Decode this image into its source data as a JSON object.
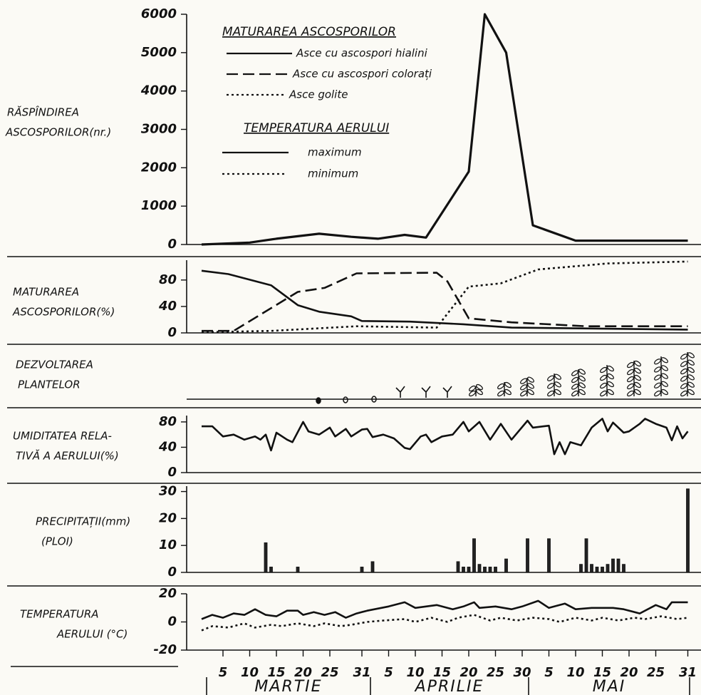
{
  "chart_data": [
    {
      "type": "line",
      "ylabel": [
        "RĂSPÎNDIREA",
        "ASCOSPORILOR(nr.)"
      ],
      "xlim": [
        0,
        94
      ],
      "ylim": [
        0,
        6000
      ],
      "yticks": [
        0,
        1000,
        2000,
        3000,
        4000,
        5000,
        6000
      ],
      "series": [
        {
          "color": "#111111",
          "dash": "solid",
          "x": [
            1,
            10,
            15,
            23,
            29,
            34,
            39,
            43,
            51,
            54,
            58,
            63,
            71,
            92
          ],
          "values": [
            0,
            50,
            150,
            280,
            200,
            150,
            250,
            180,
            1900,
            6000,
            5000,
            500,
            100,
            100
          ]
        }
      ]
    },
    {
      "type": "line",
      "ylabel": [
        "MATURAREA",
        "ASCOSPORILOR(%)"
      ],
      "legend_title": "MATURAREA ASCOSPORILOR",
      "xlim": [
        0,
        94
      ],
      "ylim": [
        0,
        110
      ],
      "yticks": [
        0,
        40,
        80
      ],
      "series": [
        {
          "name": "Asce cu ascospori hialini",
          "color": "#111111",
          "dash": "solid",
          "x": [
            1,
            6,
            14,
            19,
            23,
            29,
            31,
            40,
            50,
            59,
            92
          ],
          "values": [
            94,
            89,
            72,
            42,
            32,
            25,
            18,
            17,
            13,
            8,
            5
          ]
        },
        {
          "name": "Asce cu ascospori colorați",
          "color": "#111111",
          "dash": "dashed",
          "x": [
            1,
            7,
            19,
            24,
            30,
            45,
            47,
            51,
            59,
            73,
            92
          ],
          "values": [
            3,
            3,
            62,
            68,
            90,
            91,
            78,
            22,
            16,
            10,
            10
          ]
        },
        {
          "name": "Asce golite",
          "color": "#111111",
          "dash": "dotted",
          "x": [
            1,
            14,
            30,
            45,
            47,
            51,
            57,
            64,
            77,
            92
          ],
          "values": [
            1,
            3,
            10,
            8,
            29,
            70,
            75,
            96,
            105,
            108
          ]
        }
      ]
    },
    {
      "type": "plants",
      "ylabel": [
        "DEZVOLTAREA",
        "PLANTELOR"
      ]
    },
    {
      "type": "line",
      "ylabel": [
        "UMIDITATEA RELA-",
        "TIVĂ A AERULUI(%)"
      ],
      "xlim": [
        0,
        94
      ],
      "ylim": [
        0,
        90
      ],
      "yticks": [
        0,
        40,
        80
      ],
      "series": [
        {
          "color": "#111111",
          "dash": "solid",
          "x": [
            1,
            3,
            5,
            7,
            9,
            11,
            12,
            13,
            14,
            15,
            17,
            18,
            20,
            21,
            23,
            25,
            26,
            28,
            29,
            31,
            32,
            33,
            35,
            37,
            39,
            40,
            42,
            43,
            44,
            46,
            48,
            50,
            51,
            53,
            55,
            57,
            59,
            62,
            63,
            65,
            66,
            67,
            68,
            69,
            70,
            72,
            74,
            76,
            77,
            78,
            80,
            81,
            83,
            84,
            86,
            88,
            89,
            90,
            91,
            92
          ],
          "values": [
            73,
            73,
            57,
            60,
            52,
            57,
            52,
            60,
            35,
            63,
            52,
            48,
            80,
            65,
            60,
            71,
            57,
            69,
            57,
            68,
            69,
            56,
            60,
            54,
            39,
            37,
            57,
            60,
            48,
            57,
            60,
            80,
            65,
            80,
            52,
            77,
            52,
            82,
            71,
            73,
            74,
            29,
            48,
            29,
            48,
            43,
            71,
            85,
            65,
            79,
            63,
            65,
            77,
            85,
            77,
            71,
            51,
            73,
            54,
            65
          ]
        }
      ]
    },
    {
      "type": "bar",
      "ylabel": [
        "PRECIPITAȚII(mm)",
        "(PLOI)"
      ],
      "xlim": [
        0,
        94
      ],
      "ylim": [
        0,
        32
      ],
      "yticks": [
        0,
        10,
        20,
        30
      ],
      "color": "#222222",
      "x": [
        13,
        14,
        19,
        31,
        33,
        49,
        50,
        51,
        52,
        53,
        54,
        55,
        56,
        58,
        62,
        66,
        72,
        73,
        74,
        75,
        76,
        77,
        78,
        79,
        80,
        92
      ],
      "values": [
        11,
        2,
        2,
        2,
        4,
        4,
        2,
        2,
        12.5,
        3,
        2,
        2,
        2,
        5,
        12.5,
        12.5,
        3,
        12.5,
        3,
        2,
        2,
        3,
        5,
        5,
        3,
        31
      ]
    },
    {
      "type": "line",
      "ylabel": [
        "TEMPERATURA",
        "AERULUI (°C)"
      ],
      "legend_title": "TEMPERATURA AERULUI",
      "xlim": [
        0,
        94
      ],
      "ylim": [
        -20,
        20
      ],
      "yticks": [
        -20,
        0,
        20
      ],
      "xticks": [
        {
          "value": 5,
          "label": "5"
        },
        {
          "value": 10,
          "label": "10"
        },
        {
          "value": 15,
          "label": "15"
        },
        {
          "value": 20,
          "label": "20"
        },
        {
          "value": 25,
          "label": "25"
        },
        {
          "value": 31,
          "label": "31"
        },
        {
          "value": 36,
          "label": "5"
        },
        {
          "value": 41,
          "label": "10"
        },
        {
          "value": 46,
          "label": "15"
        },
        {
          "value": 51,
          "label": "20"
        },
        {
          "value": 56,
          "label": "25"
        },
        {
          "value": 61,
          "label": "30"
        },
        {
          "value": 66,
          "label": "5"
        },
        {
          "value": 71,
          "label": "10"
        },
        {
          "value": 76,
          "label": "15"
        },
        {
          "value": 81,
          "label": "20"
        },
        {
          "value": 86,
          "label": "25"
        },
        {
          "value": 92,
          "label": "31"
        }
      ],
      "months": [
        "MARTIE",
        "APRILIE",
        "MAI"
      ],
      "series": [
        {
          "name": "maximum",
          "color": "#111111",
          "dash": "solid",
          "x": [
            1,
            3,
            5,
            7,
            9,
            11,
            13,
            15,
            17,
            19,
            20,
            22,
            24,
            26,
            28,
            30,
            32,
            36,
            39,
            41,
            43,
            45,
            48,
            50,
            52,
            53,
            56,
            59,
            61,
            64,
            66,
            69,
            71,
            74,
            78,
            80,
            83,
            86,
            88,
            89,
            92
          ],
          "values": [
            2,
            5,
            3,
            6,
            5,
            9,
            5,
            4,
            8,
            8,
            5,
            7,
            5,
            7,
            3,
            6,
            8,
            11,
            14,
            10,
            11,
            12,
            9,
            11,
            14,
            10,
            11,
            9,
            11,
            15,
            10,
            13,
            9,
            10,
            10,
            9,
            6,
            12,
            9,
            14,
            14
          ]
        },
        {
          "name": "minimum",
          "color": "#111111",
          "dash": "dotted",
          "x": [
            1,
            3,
            6,
            9,
            11,
            14,
            16,
            19,
            22,
            24,
            27,
            29,
            32,
            35,
            39,
            41,
            44,
            47,
            49,
            52,
            55,
            57,
            60,
            63,
            66,
            68,
            71,
            74,
            76,
            79,
            82,
            84,
            87,
            90,
            92
          ],
          "values": [
            -6,
            -3,
            -4,
            -1,
            -4,
            -2,
            -3,
            -1,
            -3,
            -1,
            -3,
            -2,
            0,
            1,
            2,
            0,
            3,
            0,
            3,
            5,
            1,
            3,
            1,
            3,
            2,
            0,
            3,
            1,
            3,
            1,
            3,
            2,
            4,
            2,
            3
          ]
        }
      ]
    }
  ]
}
